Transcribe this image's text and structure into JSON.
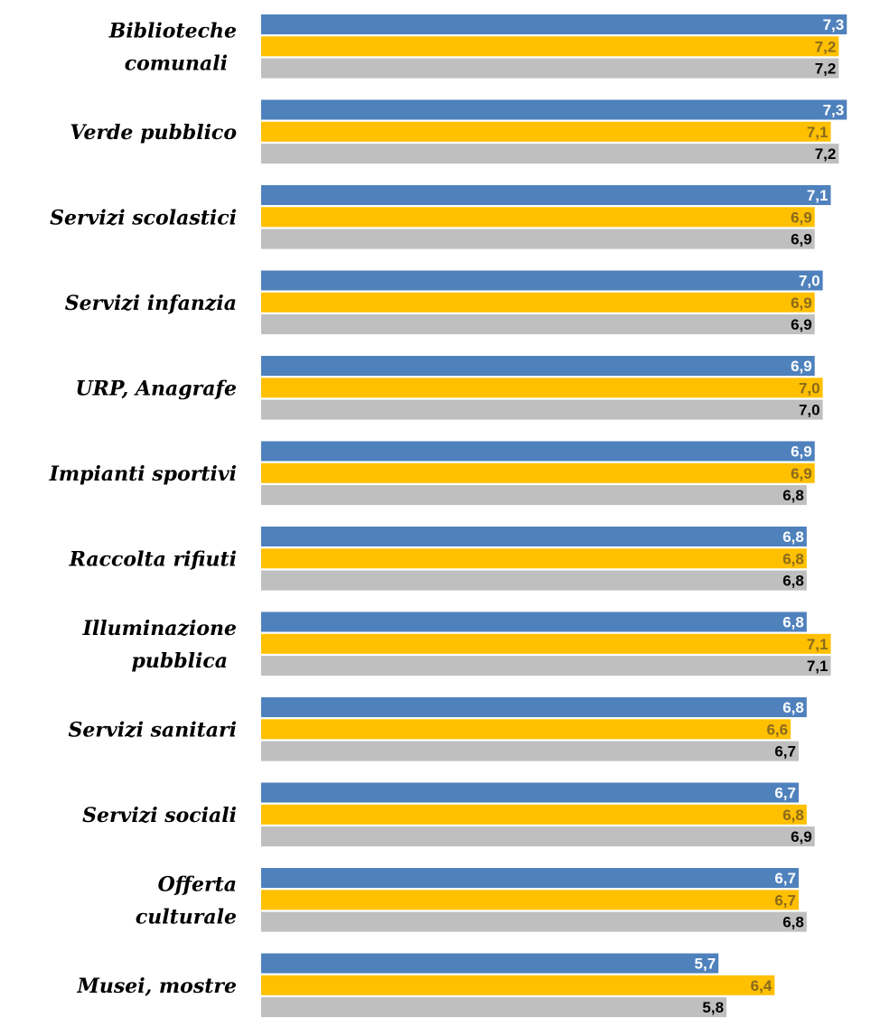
{
  "chart_data": {
    "type": "bar",
    "orientation": "horizontal",
    "categories": [
      [
        "Biblioteche",
        "comunali"
      ],
      [
        "Verde pubblico"
      ],
      [
        "Servizi scolastici"
      ],
      [
        "Servizi infanzia"
      ],
      [
        "URP,  Anagrafe"
      ],
      [
        "Impianti sportivi"
      ],
      [
        "Raccolta rifiuti"
      ],
      [
        "Illuminazione",
        "pubblica"
      ],
      [
        "Servizi sanitari"
      ],
      [
        "Servizi sociali"
      ],
      [
        "Offerta",
        "culturale"
      ],
      [
        "Musei, mostre"
      ]
    ],
    "series": [
      {
        "color": "#4f81bd",
        "label_color": "#ffffff",
        "values": [
          7.3,
          7.3,
          7.1,
          7.0,
          6.9,
          6.9,
          6.8,
          6.8,
          6.8,
          6.7,
          6.7,
          5.7
        ],
        "labels": [
          "7,3",
          "7,3",
          "7,1",
          "7,0",
          "6,9",
          "6,9",
          "6,8",
          "6,8",
          "6,8",
          "6,7",
          "6,7",
          "5,7"
        ]
      },
      {
        "color": "#ffc000",
        "label_color": "#8a6a1e",
        "values": [
          7.2,
          7.1,
          6.9,
          6.9,
          7.0,
          6.9,
          6.8,
          7.1,
          6.6,
          6.8,
          6.7,
          6.4
        ],
        "labels": [
          "7,2",
          "7,1",
          "6,9",
          "6,9",
          "7,0",
          "6,9",
          "6,8",
          "7,1",
          "6,6",
          "6,8",
          "6,7",
          "6,4"
        ]
      },
      {
        "color": "#bfbfbf",
        "label_color": "#000000",
        "values": [
          7.2,
          7.2,
          6.9,
          6.9,
          7.0,
          6.8,
          6.8,
          7.1,
          6.7,
          6.9,
          6.8,
          5.8
        ],
        "labels": [
          "7,2",
          "7,2",
          "6,9",
          "6,9",
          "7,0",
          "6,8",
          "6,8",
          "7,1",
          "6,7",
          "6,9",
          "6,8",
          "5,8"
        ]
      }
    ],
    "title": "",
    "xlabel": "",
    "ylabel": "",
    "legend": "none",
    "grid": false
  }
}
